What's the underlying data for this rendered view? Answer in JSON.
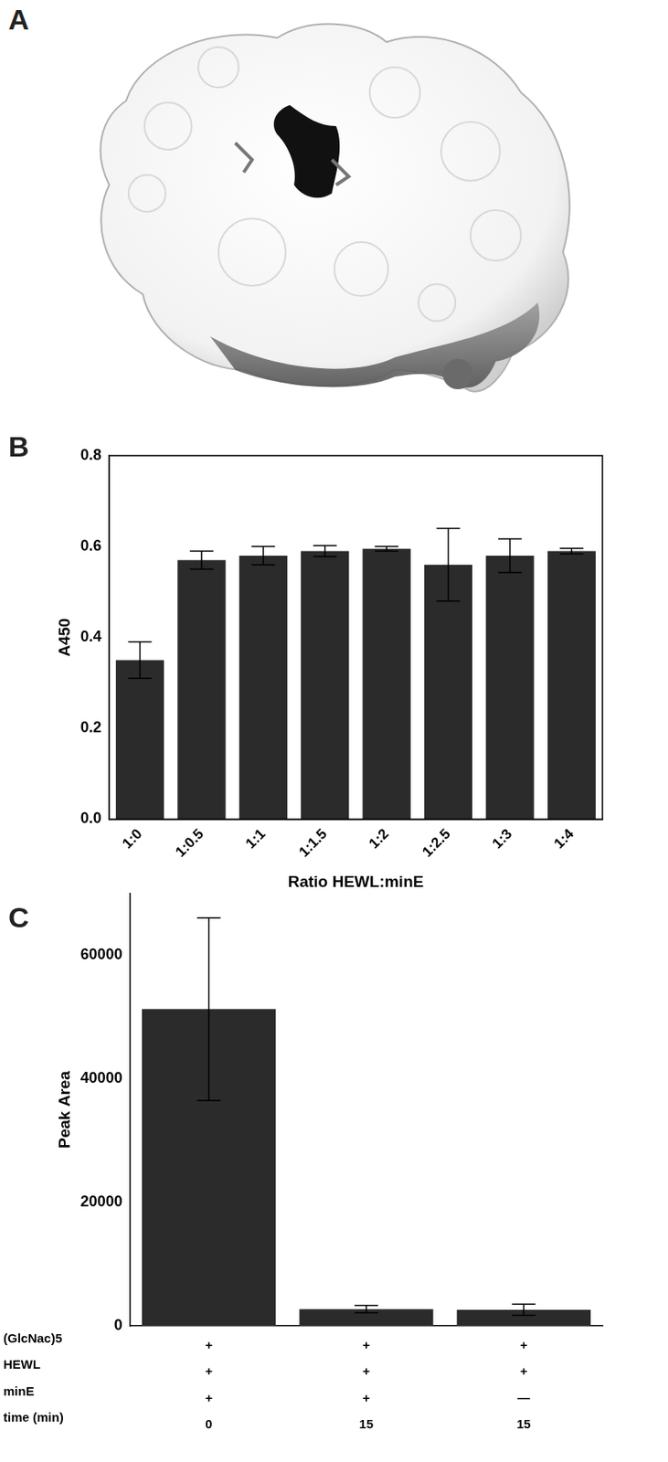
{
  "image": {
    "panel_label": "A"
  },
  "chart_data": [
    {
      "panel_label": "B",
      "type": "bar",
      "categories": [
        "1:0",
        "1:0.5",
        "1:1",
        "1:1.5",
        "1:2",
        "1:2.5",
        "1:3",
        "1:4"
      ],
      "values": [
        0.35,
        0.57,
        0.58,
        0.59,
        0.595,
        0.56,
        0.58,
        0.59
      ],
      "errors": [
        0.04,
        0.02,
        0.02,
        0.012,
        0.005,
        0.08,
        0.037,
        0.006
      ],
      "x_label": "Ratio HEWL:minE",
      "y_label": "A450",
      "ylim": [
        0,
        0.8
      ],
      "yticks": [
        {
          "value": 0,
          "label": "0.0"
        },
        0.2,
        0.4,
        0.6,
        0.8
      ],
      "color": "#2b2b2b",
      "grid": false
    },
    {
      "panel_label": "C",
      "type": "bar",
      "row_labels": [
        "(GlcNac)5",
        "HEWL",
        "minE",
        "time (min)"
      ],
      "categories": [
        [
          "+",
          "+",
          "+",
          "0"
        ],
        [
          "+",
          "+",
          "+",
          "15"
        ],
        [
          "+",
          "+",
          "—",
          "15"
        ]
      ],
      "values": [
        51300,
        2700,
        2600
      ],
      "errors": [
        14800,
        600,
        900
      ],
      "y_label": "Peak Area",
      "ylim": [
        0,
        70000
      ],
      "yticks": [
        0,
        20000,
        40000,
        60000
      ],
      "color": "#2b2b2b",
      "grid": false
    }
  ]
}
